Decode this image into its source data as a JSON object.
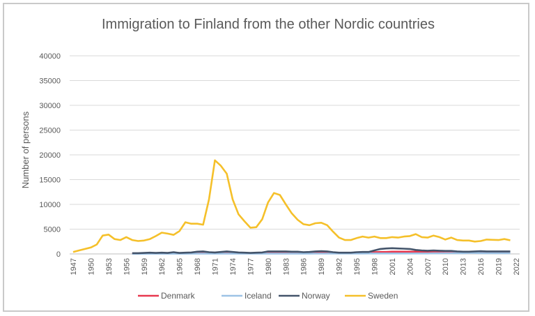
{
  "chart_data": {
    "type": "line",
    "title": "Immigration to Finland from the other Nordic countries",
    "xlabel": "",
    "ylabel": "Number of persons",
    "ylim": [
      0,
      40000
    ],
    "yticks": [
      "0",
      "5000",
      "10000",
      "15000",
      "20000",
      "25000",
      "30000",
      "35000",
      "40000"
    ],
    "xlim": [
      1947,
      2022
    ],
    "xticks": [
      "1947",
      "1950",
      "1953",
      "1956",
      "1959",
      "1962",
      "1965",
      "1968",
      "1971",
      "1974",
      "1977",
      "1980",
      "1983",
      "1986",
      "1989",
      "1992",
      "1995",
      "1998",
      "2001",
      "2004",
      "2007",
      "2010",
      "2013",
      "2016",
      "2019",
      "2022"
    ],
    "grid": true,
    "legend_position": "bottom",
    "series": [
      {
        "name": "Denmark",
        "color": "#e8384f",
        "start_year": 1957,
        "values": [
          100,
          100,
          120,
          150,
          150,
          150,
          150,
          150,
          150,
          150,
          150,
          180,
          200,
          180,
          150,
          180,
          200,
          180,
          150,
          150,
          150,
          150,
          150,
          200,
          200,
          200,
          200,
          200,
          200,
          180,
          200,
          200,
          200,
          200,
          180,
          150,
          150,
          150,
          200,
          250,
          250,
          350,
          400,
          400,
          450,
          450,
          450,
          450,
          450,
          450,
          450,
          450,
          450,
          400,
          350,
          300,
          300,
          300,
          300,
          300,
          300,
          300,
          300,
          300,
          300
        ]
      },
      {
        "name": "Iceland",
        "color": "#9dc3e6",
        "start_year": 1957,
        "values": [
          30,
          30,
          30,
          40,
          40,
          40,
          40,
          40,
          40,
          40,
          50,
          50,
          50,
          50,
          50,
          50,
          50,
          50,
          50,
          50,
          50,
          50,
          50,
          60,
          60,
          60,
          60,
          60,
          60,
          60,
          60,
          70,
          70,
          70,
          70,
          70,
          80,
          80,
          80,
          80,
          100,
          100,
          100,
          100,
          100,
          100,
          100,
          100,
          100,
          100,
          100,
          120,
          120,
          150,
          150,
          150,
          150,
          200,
          200,
          150,
          150,
          150,
          150,
          150,
          150
        ]
      },
      {
        "name": "Norway",
        "color": "#44546a",
        "start_year": 1957,
        "values": [
          150,
          150,
          200,
          250,
          200,
          250,
          200,
          350,
          200,
          250,
          300,
          450,
          500,
          350,
          300,
          400,
          500,
          400,
          300,
          250,
          200,
          250,
          300,
          500,
          500,
          500,
          500,
          450,
          450,
          350,
          400,
          500,
          550,
          500,
          350,
          250,
          250,
          250,
          350,
          400,
          400,
          700,
          1000,
          1100,
          1150,
          1100,
          1050,
          1000,
          800,
          700,
          650,
          700,
          650,
          600,
          600,
          500,
          450,
          450,
          500,
          550,
          500,
          500,
          500,
          500,
          500
        ]
      },
      {
        "name": "Sweden",
        "color": "#f5c02a",
        "start_year": 1947,
        "values": [
          400,
          700,
          1000,
          1300,
          1900,
          3700,
          3900,
          3000,
          2800,
          3400,
          2800,
          2600,
          2700,
          3000,
          3600,
          4300,
          4100,
          3850,
          4600,
          6400,
          6100,
          6100,
          5900,
          11000,
          18900,
          17800,
          16200,
          11000,
          8000,
          6600,
          5300,
          5400,
          7000,
          10400,
          12300,
          11900,
          10000,
          8200,
          6900,
          6000,
          5800,
          6200,
          6300,
          5800,
          4500,
          3300,
          2800,
          2800,
          3200,
          3500,
          3300,
          3500,
          3200,
          3200,
          3400,
          3300,
          3500,
          3600,
          4000,
          3400,
          3300,
          3700,
          3400,
          2900,
          3300,
          2800,
          2700,
          2700,
          2500,
          2600,
          2900,
          2850,
          2800,
          3000,
          2750
        ]
      }
    ]
  }
}
